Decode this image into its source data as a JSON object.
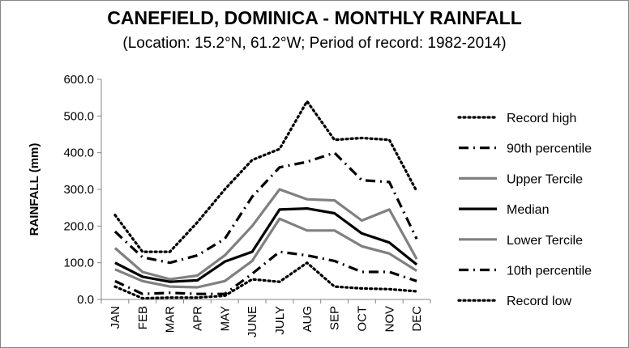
{
  "chart_data": {
    "type": "line",
    "title": "CANEFIELD, DOMINICA - MONTHLY RAINFALL",
    "subtitle": "(Location: 15.2°N, 61.2°W; Period of record: 1982-2014)",
    "ylabel": "RAINFALL (mm)",
    "xlabel": "",
    "ylim": [
      0,
      600
    ],
    "yticks": [
      "0.0",
      "100.0",
      "200.0",
      "300.0",
      "400.0",
      "500.0",
      "600.0"
    ],
    "categories": [
      "JAN",
      "FEB",
      "MAR",
      "APR",
      "MAY",
      "JUNE",
      "JULY",
      "AUG",
      "SEP",
      "OCT",
      "NOV",
      "DEC"
    ],
    "grid": "none",
    "legend_position": "right",
    "series": [
      {
        "name": "Record high",
        "style": "dotted",
        "color": "#000000",
        "values": [
          230,
          130,
          130,
          210,
          300,
          380,
          410,
          540,
          435,
          440,
          435,
          295
        ]
      },
      {
        "name": "90th percentile",
        "style": "dashdot",
        "color": "#000000",
        "values": [
          185,
          115,
          100,
          120,
          165,
          280,
          360,
          375,
          400,
          325,
          320,
          165
        ]
      },
      {
        "name": "Upper Tercile",
        "style": "solid",
        "color": "#808080",
        "values": [
          140,
          75,
          55,
          65,
          120,
          200,
          300,
          273,
          270,
          215,
          245,
          110
        ]
      },
      {
        "name": "Median",
        "style": "solid",
        "color": "#000000",
        "values": [
          100,
          62,
          48,
          52,
          103,
          130,
          245,
          248,
          235,
          180,
          155,
          95
        ]
      },
      {
        "name": "Lower Tercile",
        "style": "solid",
        "color": "#808080",
        "values": [
          82,
          50,
          35,
          33,
          50,
          105,
          220,
          188,
          188,
          145,
          125,
          78
        ]
      },
      {
        "name": "10th percentile",
        "style": "dashdot",
        "color": "#000000",
        "values": [
          50,
          15,
          18,
          15,
          15,
          70,
          130,
          120,
          105,
          75,
          75,
          50
        ]
      },
      {
        "name": "Record low",
        "style": "dotted",
        "color": "#000000",
        "values": [
          35,
          3,
          5,
          5,
          10,
          55,
          48,
          100,
          35,
          30,
          28,
          22
        ]
      }
    ]
  }
}
